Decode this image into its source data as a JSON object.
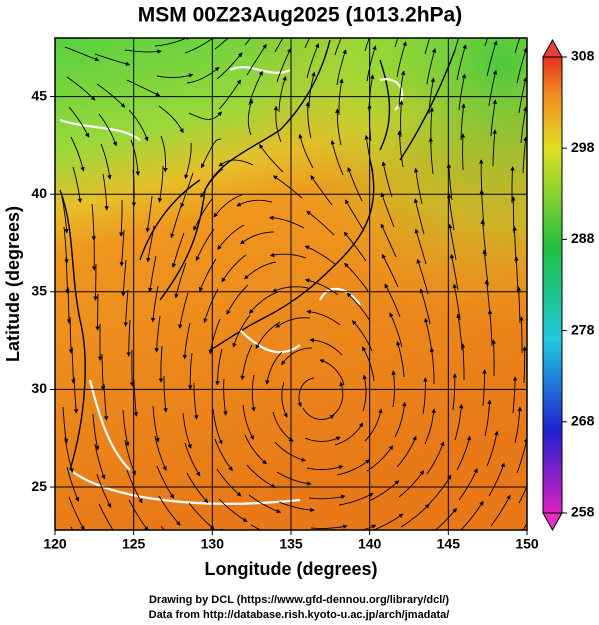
{
  "chart_data": {
    "type": "map",
    "title": "MSM 00Z23Aug2025 (1013.2hPa)",
    "x_label": "Longitude (degrees)",
    "y_label": "Latitude  (degrees)",
    "xlim": [
      120,
      150
    ],
    "ylim": [
      22.8,
      48
    ],
    "xticks": [
      120,
      125,
      130,
      135,
      140,
      145,
      150
    ],
    "yticks": [
      25,
      30,
      35,
      40,
      45
    ],
    "grid": true,
    "colorbar": {
      "lim": [
        258,
        308
      ],
      "ticks": [
        258,
        268,
        278,
        288,
        298,
        308
      ]
    },
    "footer": [
      "Drawing by DCL (https://www.gfd-dennou.org/library/dcl/)",
      "Data from http://database.rish.kyoto-u.ac.jp/arch/jmadata/"
    ]
  }
}
